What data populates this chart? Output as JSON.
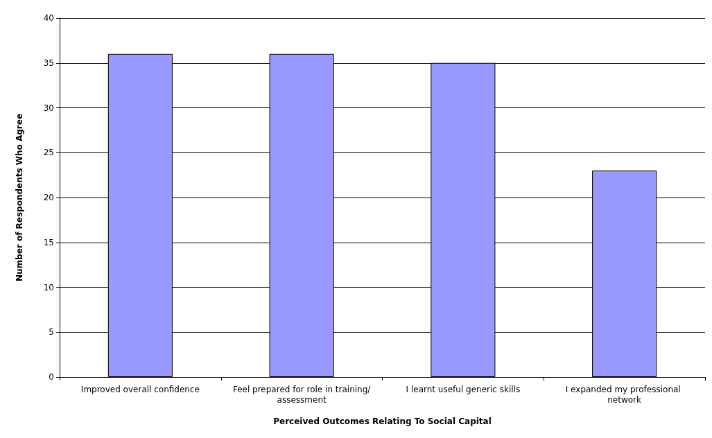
{
  "chart_data": {
    "type": "bar",
    "xlabel": "Perceived Outcomes Relating To Social Capital",
    "ylabel": "Number of Respondents Who Agree",
    "categories": [
      "Improved overall confidence",
      "Feel prepared for role in training/assessment",
      "I learnt useful generic skills",
      "I expanded my professional network"
    ],
    "values": [
      36,
      36,
      35,
      23
    ],
    "color": "#9999ff",
    "ylim": [
      0,
      40
    ],
    "yticks": [
      0,
      5,
      10,
      15,
      20,
      25,
      30,
      35,
      40
    ],
    "grid": "y"
  }
}
